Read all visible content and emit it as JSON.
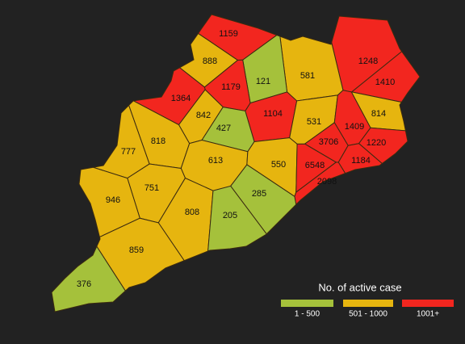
{
  "map": {
    "regions": [
      {
        "value": 1159,
        "color": "#f2261f"
      },
      {
        "value": 888,
        "color": "#e6b50f"
      },
      {
        "value": 1248,
        "color": "#f2261f"
      },
      {
        "value": 581,
        "color": "#e6b50f"
      },
      {
        "value": 121,
        "color": "#a5c13b"
      },
      {
        "value": 1179,
        "color": "#f2261f"
      },
      {
        "value": 1410,
        "color": "#f2261f"
      },
      {
        "value": 1364,
        "color": "#f2261f"
      },
      {
        "value": 1104,
        "color": "#f2261f"
      },
      {
        "value": 842,
        "color": "#e6b50f"
      },
      {
        "value": 814,
        "color": "#e6b50f"
      },
      {
        "value": 531,
        "color": "#e6b50f"
      },
      {
        "value": 427,
        "color": "#a5c13b"
      },
      {
        "value": 1409,
        "color": "#f2261f"
      },
      {
        "value": 818,
        "color": "#e6b50f"
      },
      {
        "value": 3706,
        "color": "#f2261f"
      },
      {
        "value": 1220,
        "color": "#f2261f"
      },
      {
        "value": 777,
        "color": "#e6b50f"
      },
      {
        "value": 613,
        "color": "#e6b50f"
      },
      {
        "value": 550,
        "color": "#e6b50f"
      },
      {
        "value": 6548,
        "color": "#f2261f"
      },
      {
        "value": 1184,
        "color": "#f2261f"
      },
      {
        "value": 2098,
        "color": "#f2261f"
      },
      {
        "value": 751,
        "color": "#e6b50f"
      },
      {
        "value": 285,
        "color": "#a5c13b"
      },
      {
        "value": 946,
        "color": "#e6b50f"
      },
      {
        "value": 808,
        "color": "#e6b50f"
      },
      {
        "value": 205,
        "color": "#a5c13b"
      },
      {
        "value": 859,
        "color": "#e6b50f"
      },
      {
        "value": 376,
        "color": "#a5c13b"
      }
    ],
    "legend": {
      "title": "No. of active case",
      "items": [
        {
          "label": "1 - 500",
          "color": "#a5c13b"
        },
        {
          "label": "501 - 1000",
          "color": "#e6b50f"
        },
        {
          "label": "1001+",
          "color": "#f2261f"
        }
      ]
    }
  }
}
